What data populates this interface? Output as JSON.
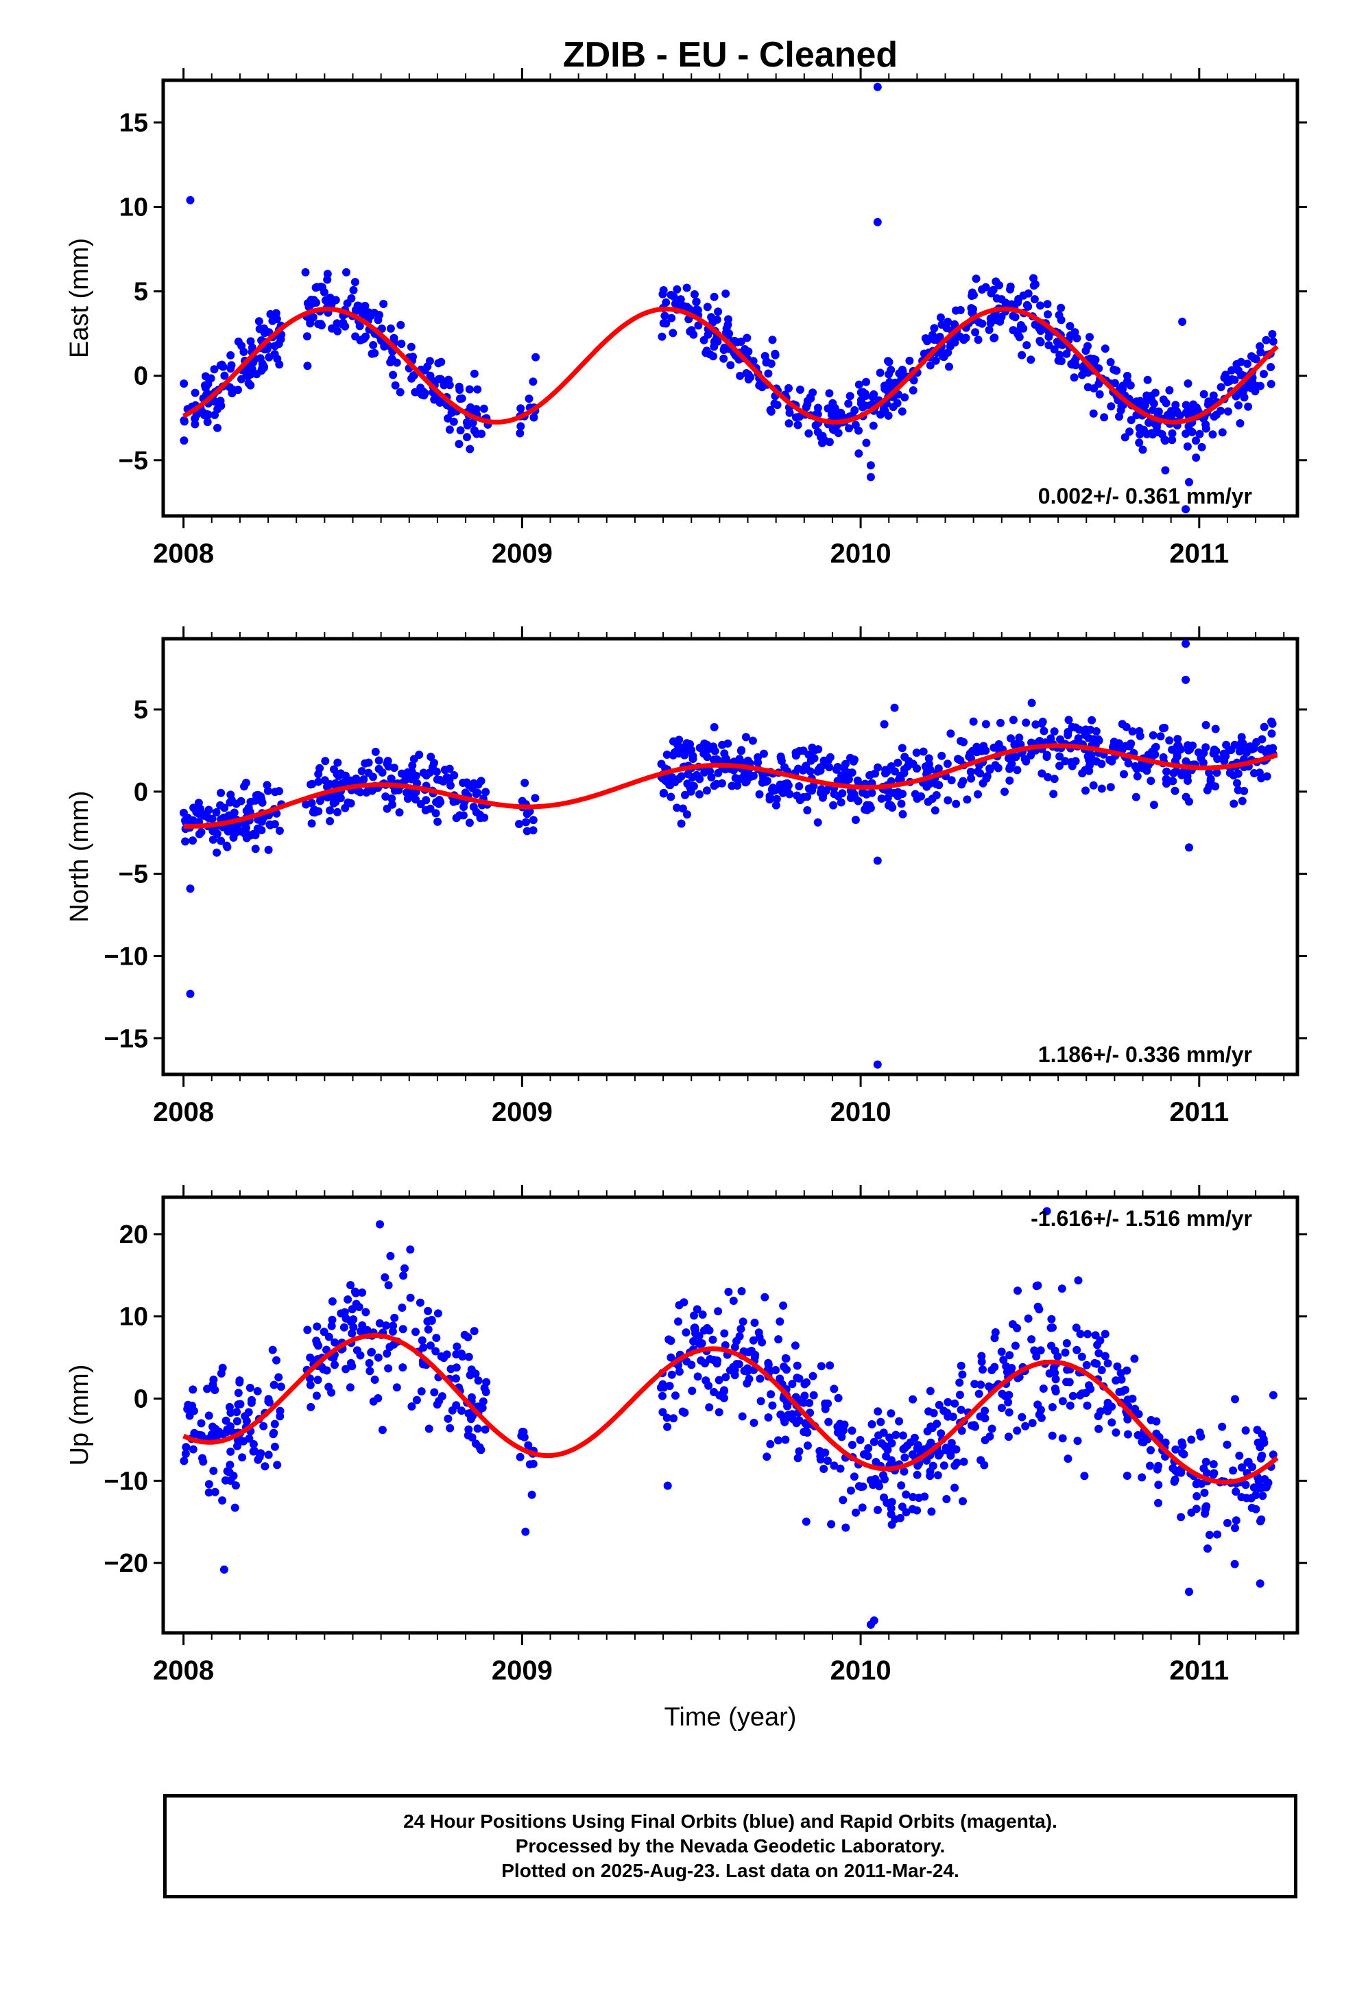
{
  "chart_data": [
    {
      "type": "scatter",
      "title": "ZDIB  - EU - Cleaned",
      "ylabel": "East (mm)",
      "xlabel": "",
      "xlim": [
        2007.94,
        2011.29
      ],
      "ylim": [
        -8.3,
        17.5
      ],
      "xticks": [
        2008,
        2009,
        2010,
        2011
      ],
      "xtick_labels": [
        "2008",
        "2009",
        "2010",
        "2011"
      ],
      "yticks": [
        -5,
        0,
        5,
        10,
        15
      ],
      "ytick_labels": [
        "−5",
        "0",
        "5",
        "10",
        "15"
      ],
      "rate_label": "0.002+/- 0.361 mm/yr",
      "rate_position": "bottom-right",
      "point_color": "#0000ff",
      "fit_color": "#ff0000",
      "fit_model": {
        "mean": 0.6,
        "trend": 0.002,
        "amp": 3.35,
        "phase_year": 0.425,
        "t0": 2008.0
      },
      "segments": [
        {
          "start": 2008.0,
          "end": 2008.29,
          "count": 110,
          "scatter": 0.9
        },
        {
          "start": 2008.36,
          "end": 2008.9,
          "count": 180,
          "scatter": 0.9
        },
        {
          "start": 2008.99,
          "end": 2009.04,
          "count": 12,
          "scatter": 0.6
        },
        {
          "start": 2009.41,
          "end": 2011.22,
          "count": 620,
          "scatter": 0.9
        }
      ],
      "outliers": [
        {
          "x": 2008.02,
          "y": 10.4
        },
        {
          "x": 2010.05,
          "y": 17.1
        },
        {
          "x": 2010.05,
          "y": 9.1
        },
        {
          "x": 2010.03,
          "y": -6.0
        },
        {
          "x": 2010.03,
          "y": -5.3
        },
        {
          "x": 2010.95,
          "y": 3.2
        },
        {
          "x": 2010.96,
          "y": -7.9
        },
        {
          "x": 2010.97,
          "y": -6.3
        },
        {
          "x": 2010.9,
          "y": -5.6
        },
        {
          "x": 2009.04,
          "y": 1.1
        }
      ]
    },
    {
      "type": "scatter",
      "ylabel": "North (mm)",
      "xlabel": "",
      "xlim": [
        2007.94,
        2011.29
      ],
      "ylim": [
        -17.2,
        9.3
      ],
      "xticks": [
        2008,
        2009,
        2010,
        2011
      ],
      "xtick_labels": [
        "2008",
        "2009",
        "2010",
        "2011"
      ],
      "yticks": [
        -15,
        -10,
        -5,
        0,
        5
      ],
      "ytick_labels": [
        "−15",
        "−10",
        "−5",
        "0",
        "5"
      ],
      "rate_label": "1.186+/- 0.336 mm/yr",
      "rate_position": "bottom-right",
      "point_color": "#0000ff",
      "fit_color": "#ff0000",
      "fit_model": {
        "mean": -1.2,
        "trend": 1.186,
        "amp": 0.95,
        "phase_year": 0.55,
        "t0": 2008.0
      },
      "segments": [
        {
          "start": 2008.0,
          "end": 2008.29,
          "count": 110,
          "scatter": 0.9
        },
        {
          "start": 2008.36,
          "end": 2008.9,
          "count": 180,
          "scatter": 0.9
        },
        {
          "start": 2008.99,
          "end": 2009.04,
          "count": 12,
          "scatter": 0.9
        },
        {
          "start": 2009.41,
          "end": 2011.22,
          "count": 620,
          "scatter": 1.0
        }
      ],
      "outliers": [
        {
          "x": 2008.02,
          "y": -12.3
        },
        {
          "x": 2008.02,
          "y": -5.9
        },
        {
          "x": 2010.05,
          "y": -16.6
        },
        {
          "x": 2010.05,
          "y": -4.2
        },
        {
          "x": 2010.96,
          "y": 9.0
        },
        {
          "x": 2010.96,
          "y": 6.8
        },
        {
          "x": 2010.97,
          "y": -3.4
        },
        {
          "x": 2010.07,
          "y": 4.1
        },
        {
          "x": 2010.1,
          "y": 5.1
        }
      ]
    },
    {
      "type": "scatter",
      "ylabel": "Up (mm)",
      "xlabel": "Time (year)",
      "xlim": [
        2007.94,
        2011.29
      ],
      "ylim": [
        -28.5,
        24.5
      ],
      "xticks": [
        2008,
        2009,
        2010,
        2011
      ],
      "xtick_labels": [
        "2008",
        "2009",
        "2010",
        "2011"
      ],
      "yticks": [
        -20,
        -10,
        0,
        10,
        20
      ],
      "ytick_labels": [
        "−20",
        "−10",
        "0",
        "10",
        "20"
      ],
      "rate_label": "-1.616+/- 1.516 mm/yr",
      "rate_position": "top-right",
      "point_color": "#0000ff",
      "fit_color": "#ff0000",
      "fit_model": {
        "mean": 1.7,
        "trend": -1.616,
        "amp": 6.9,
        "phase_year": 0.57,
        "t0": 2008.0
      },
      "segments": [
        {
          "start": 2008.0,
          "end": 2008.29,
          "count": 110,
          "scatter": 4.2
        },
        {
          "start": 2008.36,
          "end": 2008.9,
          "count": 180,
          "scatter": 3.8
        },
        {
          "start": 2008.99,
          "end": 2009.04,
          "count": 12,
          "scatter": 3.0
        },
        {
          "start": 2009.41,
          "end": 2011.22,
          "count": 620,
          "scatter": 3.8
        }
      ],
      "outliers": [
        {
          "x": 2008.58,
          "y": 21.2
        },
        {
          "x": 2010.03,
          "y": -27.5
        },
        {
          "x": 2010.04,
          "y": -27.0
        },
        {
          "x": 2010.55,
          "y": 22.8
        },
        {
          "x": 2008.12,
          "y": -20.8
        },
        {
          "x": 2009.01,
          "y": -16.2
        },
        {
          "x": 2010.97,
          "y": -23.5
        },
        {
          "x": 2011.18,
          "y": -22.5
        },
        {
          "x": 2009.43,
          "y": -10.6
        }
      ]
    }
  ],
  "footer": {
    "line1": "24 Hour Positions Using Final Orbits (blue) and Rapid Orbits (magenta).",
    "line2": "Processed by the Nevada Geodetic Laboratory.",
    "line3": "Plotted on 2025-Aug-23. Last data on 2011-Mar-24."
  }
}
